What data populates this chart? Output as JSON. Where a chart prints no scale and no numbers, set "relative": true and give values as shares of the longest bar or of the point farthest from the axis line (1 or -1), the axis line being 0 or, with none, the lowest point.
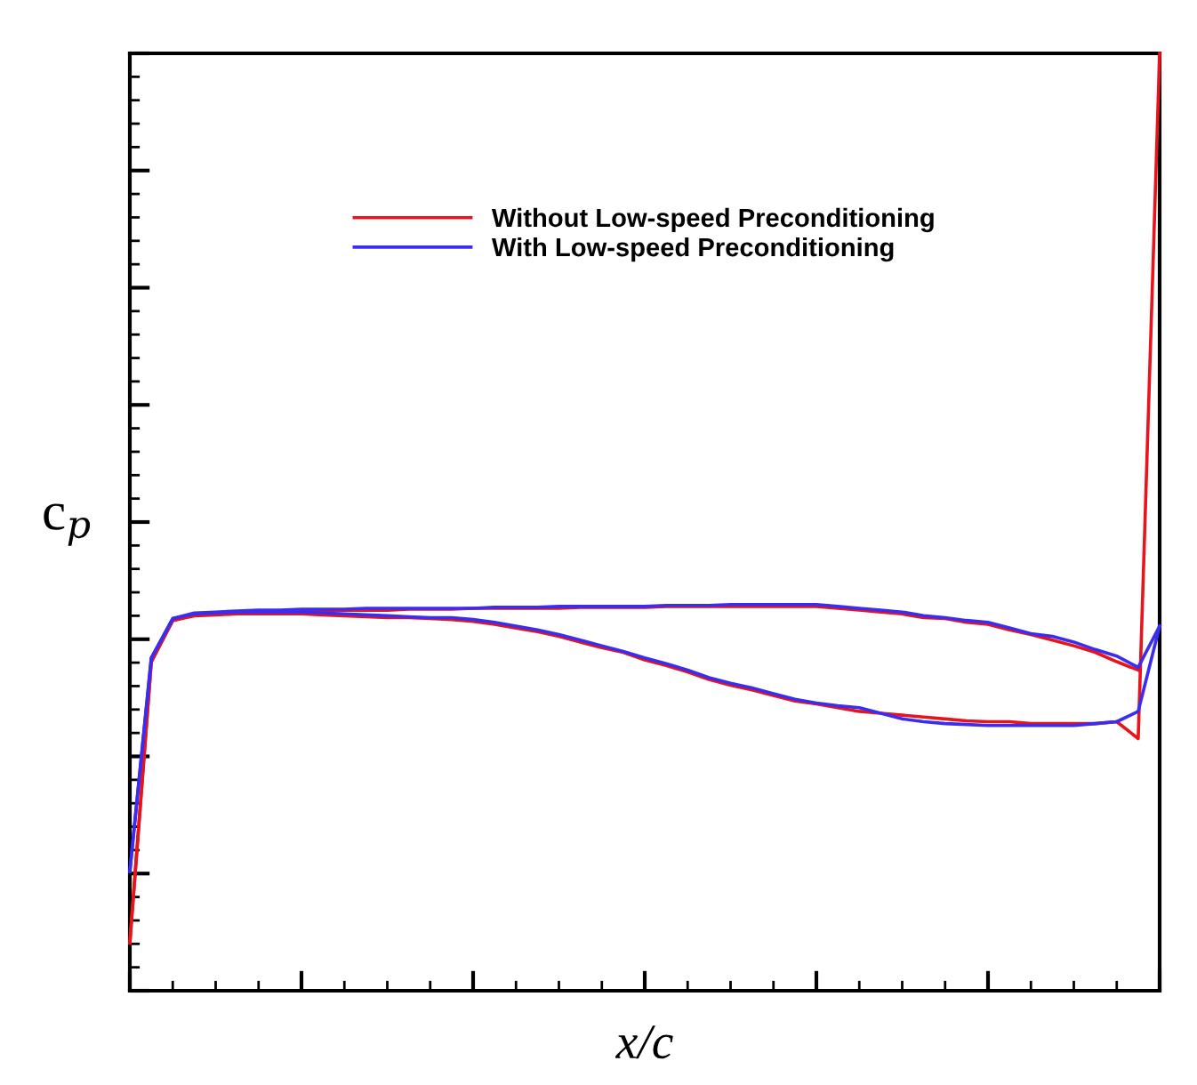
{
  "chart_data": {
    "type": "line",
    "relative": true,
    "xlabel": "x/c",
    "ylabel": "c$_{p}$",
    "legend": "top",
    "tick_labels": false,
    "line_style": "solid",
    "categories": [
      null,
      null,
      null,
      null,
      null,
      null,
      null,
      null,
      null,
      null,
      null,
      null,
      null,
      null,
      null,
      null,
      null,
      null,
      null,
      null,
      null,
      null,
      null,
      null,
      null,
      null,
      null,
      null,
      null,
      null,
      null,
      null,
      null,
      null,
      null,
      null,
      null,
      null,
      null,
      null,
      null,
      null,
      null,
      null,
      null,
      null,
      null,
      null,
      null
    ],
    "series": [
      {
        "name": "Without Low-speed Preconditioning",
        "color": "#e8141b",
        "values": [
          0.051,
          0.351,
          0.395,
          0.4,
          0.401,
          0.402,
          0.402,
          0.402,
          0.402,
          0.401,
          0.4,
          0.399,
          0.398,
          0.398,
          0.397,
          0.396,
          0.394,
          0.391,
          0.387,
          0.383,
          0.378,
          0.372,
          0.366,
          0.361,
          0.353,
          0.347,
          0.34,
          0.332,
          0.326,
          0.321,
          0.315,
          0.309,
          0.306,
          0.302,
          0.298,
          0.296,
          0.294,
          0.292,
          0.29,
          0.288,
          0.287,
          0.287,
          0.285,
          0.285,
          0.285,
          0.285,
          0.287,
          0.269,
          1.0
        ]
      },
      {
        "color": "#e8141b",
        "values": [
          0.051,
          0.351,
          0.395,
          0.401,
          0.402,
          0.403,
          0.404,
          0.404,
          0.405,
          0.405,
          0.406,
          0.406,
          0.406,
          0.407,
          0.407,
          0.407,
          0.408,
          0.408,
          0.408,
          0.408,
          0.408,
          0.409,
          0.409,
          0.409,
          0.409,
          0.41,
          0.41,
          0.41,
          0.41,
          0.41,
          0.41,
          0.41,
          0.41,
          0.408,
          0.406,
          0.404,
          0.402,
          0.398,
          0.397,
          0.393,
          0.391,
          0.385,
          0.38,
          0.374,
          0.368,
          0.361,
          0.351,
          0.342,
          null
        ]
      },
      {
        "name": "With Low-speed Preconditioning",
        "color": "#3b2df0",
        "values": [
          0.127,
          0.355,
          0.397,
          0.402,
          0.403,
          0.404,
          0.404,
          0.404,
          0.404,
          0.403,
          0.402,
          0.401,
          0.4,
          0.399,
          0.398,
          0.398,
          0.396,
          0.393,
          0.389,
          0.385,
          0.38,
          0.374,
          0.368,
          0.362,
          0.355,
          0.349,
          0.342,
          0.334,
          0.328,
          0.323,
          0.317,
          0.311,
          0.307,
          0.304,
          0.302,
          0.296,
          0.29,
          0.287,
          0.285,
          0.284,
          0.283,
          0.283,
          0.283,
          0.283,
          0.283,
          0.285,
          0.287,
          0.298,
          0.389
        ]
      },
      {
        "color": "#3b2df0",
        "values": [
          0.127,
          0.355,
          0.397,
          0.403,
          0.404,
          0.405,
          0.406,
          0.406,
          0.407,
          0.407,
          0.407,
          0.408,
          0.408,
          0.408,
          0.408,
          0.408,
          0.408,
          0.409,
          0.409,
          0.409,
          0.41,
          0.41,
          0.41,
          0.41,
          0.41,
          0.411,
          0.411,
          0.411,
          0.412,
          0.412,
          0.412,
          0.412,
          0.412,
          0.41,
          0.408,
          0.406,
          0.404,
          0.4,
          0.398,
          0.395,
          0.393,
          0.387,
          0.381,
          0.378,
          0.372,
          0.364,
          0.357,
          0.345,
          0.389
        ]
      }
    ]
  }
}
